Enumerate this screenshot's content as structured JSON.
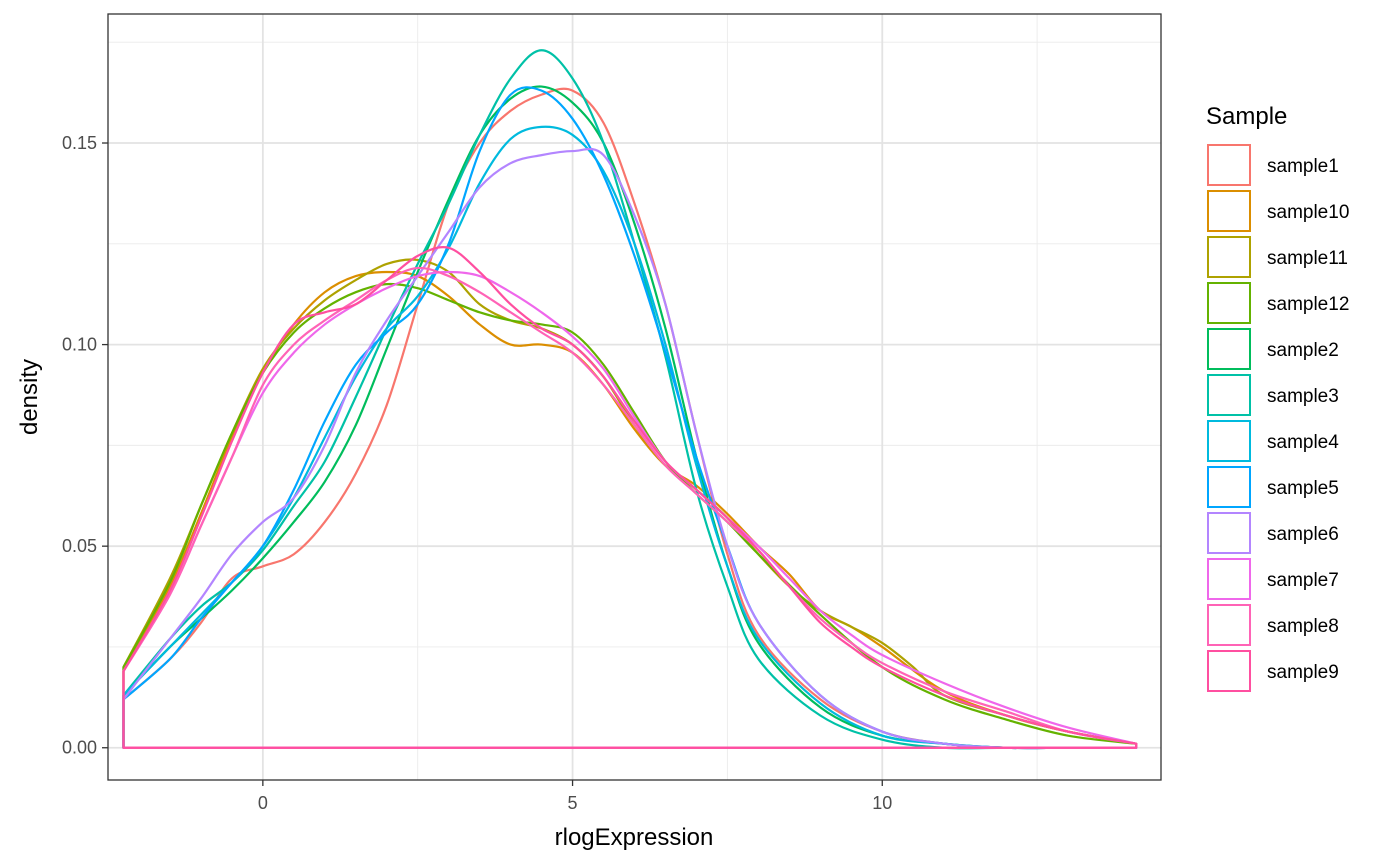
{
  "chart_data": {
    "type": "line",
    "subtype": "density",
    "xlabel": "rlogExpression",
    "ylabel": "density",
    "xlim": [
      -2.5,
      14.5
    ],
    "ylim": [
      -0.008,
      0.182
    ],
    "x_ticks": [
      0,
      5,
      10
    ],
    "y_ticks": [
      0.0,
      0.05,
      0.1,
      0.15
    ],
    "x_tick_labels": [
      "0",
      "5",
      "10"
    ],
    "y_tick_labels": [
      "0.00",
      "0.05",
      "0.10",
      "0.15"
    ],
    "grid": true,
    "legend_position": "right",
    "legend_title": "Sample",
    "series": [
      {
        "name": "sample1",
        "color": "#F8766D",
        "x": [
          -2.25,
          -1.5,
          -1,
          -0.5,
          0,
          0.5,
          1,
          1.5,
          2,
          2.5,
          3,
          3.5,
          4,
          4.5,
          5,
          5.5,
          6,
          6.5,
          7,
          7.5,
          8,
          9,
          10,
          11,
          12,
          13,
          14.1
        ],
        "y": [
          0.012,
          0.022,
          0.031,
          0.042,
          0.045,
          0.048,
          0.056,
          0.068,
          0.085,
          0.11,
          0.135,
          0.15,
          0.158,
          0.162,
          0.163,
          0.155,
          0.135,
          0.11,
          0.078,
          0.048,
          0.028,
          0.012,
          0.004,
          0.001,
          0.0,
          0.0,
          0.0
        ]
      },
      {
        "name": "sample10",
        "color": "#DB8E00",
        "x": [
          -2.25,
          -1.5,
          -1,
          -0.5,
          0,
          0.5,
          1,
          1.5,
          2,
          2.5,
          3,
          3.5,
          4,
          4.5,
          5,
          5.5,
          6,
          6.5,
          7,
          7.5,
          8,
          8.5,
          9,
          9.5,
          10,
          11,
          12,
          13,
          14.1
        ],
        "y": [
          0.019,
          0.04,
          0.058,
          0.077,
          0.093,
          0.105,
          0.113,
          0.117,
          0.118,
          0.117,
          0.112,
          0.105,
          0.1,
          0.1,
          0.098,
          0.09,
          0.079,
          0.07,
          0.065,
          0.058,
          0.05,
          0.043,
          0.034,
          0.03,
          0.025,
          0.014,
          0.008,
          0.004,
          0.001
        ]
      },
      {
        "name": "sample11",
        "color": "#AEA200",
        "x": [
          -2.25,
          -1.5,
          -1,
          -0.5,
          0,
          0.5,
          1,
          1.5,
          2,
          2.5,
          3,
          3.5,
          4,
          4.5,
          5,
          5.5,
          6,
          6.5,
          7,
          7.5,
          8,
          8.5,
          9,
          9.5,
          10,
          10.5,
          11,
          12,
          13,
          14.1
        ],
        "y": [
          0.02,
          0.042,
          0.06,
          0.078,
          0.094,
          0.104,
          0.111,
          0.116,
          0.12,
          0.121,
          0.118,
          0.11,
          0.106,
          0.104,
          0.1,
          0.092,
          0.08,
          0.07,
          0.064,
          0.057,
          0.048,
          0.04,
          0.034,
          0.03,
          0.026,
          0.02,
          0.013,
          0.008,
          0.004,
          0.001
        ]
      },
      {
        "name": "sample12",
        "color": "#64B200",
        "x": [
          -2.25,
          -1.5,
          -1,
          -0.5,
          0,
          0.5,
          1,
          1.5,
          2,
          2.5,
          3,
          3.5,
          4,
          4.5,
          5,
          5.5,
          6,
          6.5,
          7,
          7.5,
          8,
          9,
          10,
          11,
          12,
          13,
          14.1
        ],
        "y": [
          0.02,
          0.041,
          0.06,
          0.078,
          0.093,
          0.103,
          0.109,
          0.113,
          0.115,
          0.114,
          0.111,
          0.108,
          0.106,
          0.105,
          0.103,
          0.095,
          0.083,
          0.071,
          0.063,
          0.056,
          0.048,
          0.033,
          0.02,
          0.012,
          0.007,
          0.003,
          0.001
        ]
      },
      {
        "name": "sample2",
        "color": "#00BD5C",
        "x": [
          -2.25,
          -1.5,
          -1,
          -0.5,
          0,
          0.5,
          1,
          1.5,
          2,
          2.5,
          3,
          3.5,
          4,
          4.5,
          5,
          5.5,
          6,
          6.5,
          7,
          7.5,
          8,
          9,
          10,
          11,
          12,
          13,
          14.1
        ],
        "y": [
          0.013,
          0.025,
          0.032,
          0.039,
          0.047,
          0.056,
          0.066,
          0.08,
          0.099,
          0.118,
          0.136,
          0.152,
          0.161,
          0.164,
          0.16,
          0.15,
          0.13,
          0.104,
          0.072,
          0.045,
          0.026,
          0.01,
          0.003,
          0.001,
          0.0,
          0.0,
          0.0
        ]
      },
      {
        "name": "sample3",
        "color": "#00C1A7",
        "x": [
          -2.25,
          -1.5,
          -1,
          -0.5,
          0,
          0.5,
          1,
          1.5,
          2,
          2.5,
          3,
          3.5,
          4,
          4.5,
          5,
          5.5,
          6,
          6.5,
          7,
          7.5,
          8,
          9,
          10,
          11,
          12,
          13,
          14.1
        ],
        "y": [
          0.013,
          0.027,
          0.035,
          0.041,
          0.049,
          0.06,
          0.071,
          0.087,
          0.104,
          0.12,
          0.135,
          0.152,
          0.166,
          0.173,
          0.166,
          0.15,
          0.125,
          0.097,
          0.064,
          0.04,
          0.022,
          0.008,
          0.002,
          0.0,
          0.0,
          0.0,
          0.0
        ]
      },
      {
        "name": "sample4",
        "color": "#00BADE",
        "x": [
          -2.25,
          -1.5,
          -1,
          -0.5,
          0,
          0.5,
          1,
          1.5,
          2,
          2.5,
          3,
          3.5,
          4,
          4.5,
          5,
          5.5,
          6,
          6.5,
          7,
          7.5,
          8,
          9,
          10,
          11,
          12,
          13,
          14.1
        ],
        "y": [
          0.013,
          0.025,
          0.033,
          0.041,
          0.05,
          0.062,
          0.077,
          0.092,
          0.104,
          0.112,
          0.124,
          0.14,
          0.151,
          0.154,
          0.152,
          0.143,
          0.125,
          0.1,
          0.07,
          0.045,
          0.027,
          0.011,
          0.003,
          0.001,
          0.0,
          0.0,
          0.0
        ]
      },
      {
        "name": "sample5",
        "color": "#00A6FF",
        "x": [
          -2.25,
          -1.5,
          -1,
          -0.5,
          0,
          0.5,
          1,
          1.5,
          2,
          2.5,
          3,
          3.5,
          4,
          4.5,
          5,
          5.5,
          6,
          6.5,
          7,
          7.5,
          8,
          9,
          10,
          11,
          12,
          13,
          14.1
        ],
        "y": [
          0.012,
          0.022,
          0.032,
          0.041,
          0.05,
          0.064,
          0.081,
          0.095,
          0.103,
          0.11,
          0.125,
          0.148,
          0.162,
          0.163,
          0.156,
          0.142,
          0.122,
          0.098,
          0.072,
          0.05,
          0.031,
          0.013,
          0.004,
          0.001,
          0.0,
          0.0,
          0.0
        ]
      },
      {
        "name": "sample6",
        "color": "#B385FF",
        "x": [
          -2.25,
          -1.5,
          -1,
          -0.5,
          0,
          0.5,
          1,
          1.5,
          2,
          2.5,
          3,
          3.5,
          4,
          4.5,
          5,
          5.5,
          6,
          6.5,
          7,
          7.5,
          8,
          9,
          10,
          11,
          12,
          13,
          14.1
        ],
        "y": [
          0.012,
          0.027,
          0.037,
          0.048,
          0.056,
          0.062,
          0.075,
          0.093,
          0.106,
          0.117,
          0.128,
          0.139,
          0.145,
          0.147,
          0.148,
          0.147,
          0.132,
          0.11,
          0.078,
          0.05,
          0.031,
          0.013,
          0.004,
          0.001,
          0.0,
          0.0,
          0.0
        ]
      },
      {
        "name": "sample7",
        "color": "#EF67EB",
        "x": [
          -2.25,
          -1.5,
          -1,
          -0.5,
          0,
          0.5,
          1,
          1.5,
          2,
          2.5,
          3,
          3.5,
          4,
          4.5,
          5,
          5.5,
          6,
          6.5,
          7,
          7.5,
          8,
          8.5,
          9,
          9.5,
          10,
          11,
          12,
          13,
          14.1
        ],
        "y": [
          0.019,
          0.038,
          0.055,
          0.072,
          0.088,
          0.098,
          0.105,
          0.11,
          0.114,
          0.117,
          0.118,
          0.117,
          0.113,
          0.108,
          0.102,
          0.094,
          0.082,
          0.071,
          0.064,
          0.057,
          0.05,
          0.042,
          0.034,
          0.028,
          0.023,
          0.016,
          0.01,
          0.005,
          0.001
        ]
      },
      {
        "name": "sample8",
        "color": "#FF63B6",
        "x": [
          -2.25,
          -1.5,
          -1,
          -0.5,
          0,
          0.5,
          1,
          1.5,
          2,
          2.5,
          3,
          3.5,
          4,
          4.5,
          5,
          5.5,
          6,
          6.5,
          7,
          7.5,
          8,
          8.5,
          9,
          9.5,
          10,
          11,
          12,
          13,
          14.1
        ],
        "y": [
          0.019,
          0.038,
          0.055,
          0.072,
          0.09,
          0.1,
          0.106,
          0.111,
          0.116,
          0.119,
          0.117,
          0.113,
          0.108,
          0.103,
          0.098,
          0.09,
          0.08,
          0.07,
          0.063,
          0.056,
          0.049,
          0.04,
          0.032,
          0.026,
          0.021,
          0.014,
          0.009,
          0.004,
          0.001
        ]
      },
      {
        "name": "sample9",
        "color": "#FF4FA0",
        "x": [
          -2.25,
          -1.5,
          -1,
          -0.5,
          0,
          0.5,
          1,
          1.5,
          2,
          2.5,
          3,
          3.5,
          4,
          4.5,
          5,
          5.5,
          6,
          6.5,
          7,
          7.5,
          8,
          8.5,
          9,
          9.5,
          10,
          11,
          12,
          13,
          14.1
        ],
        "y": [
          0.019,
          0.039,
          0.057,
          0.076,
          0.093,
          0.105,
          0.108,
          0.11,
          0.116,
          0.122,
          0.124,
          0.118,
          0.11,
          0.104,
          0.1,
          0.092,
          0.081,
          0.071,
          0.064,
          0.057,
          0.049,
          0.04,
          0.031,
          0.025,
          0.02,
          0.013,
          0.008,
          0.004,
          0.001
        ]
      }
    ]
  }
}
